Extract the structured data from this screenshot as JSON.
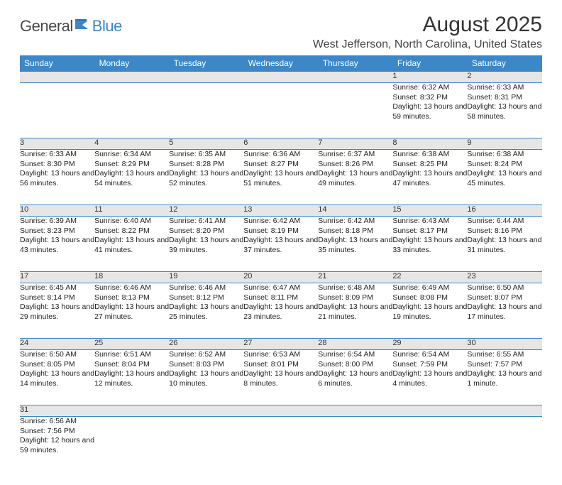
{
  "logo": {
    "part1": "General",
    "part2": "Blue"
  },
  "title": "August 2025",
  "location": "West Jefferson, North Carolina, United States",
  "weekdays": [
    "Sunday",
    "Monday",
    "Tuesday",
    "Wednesday",
    "Thursday",
    "Friday",
    "Saturday"
  ],
  "colors": {
    "header_bg": "#3b87c8",
    "header_text": "#ffffff",
    "daynum_bg": "#e6e6e6",
    "border": "#3b87c8",
    "text": "#222222",
    "logo_gray": "#4a4a4a",
    "logo_blue": "#3b87c8"
  },
  "font": {
    "body_size": 10.5,
    "daynum_size": 11,
    "header_size": 12,
    "title_size": 30,
    "location_size": 16
  },
  "weeks": [
    [
      null,
      null,
      null,
      null,
      null,
      {
        "n": "1",
        "sunrise": "6:32 AM",
        "sunset": "8:32 PM",
        "daylight": "13 hours and 59 minutes."
      },
      {
        "n": "2",
        "sunrise": "6:33 AM",
        "sunset": "8:31 PM",
        "daylight": "13 hours and 58 minutes."
      }
    ],
    [
      {
        "n": "3",
        "sunrise": "6:33 AM",
        "sunset": "8:30 PM",
        "daylight": "13 hours and 56 minutes."
      },
      {
        "n": "4",
        "sunrise": "6:34 AM",
        "sunset": "8:29 PM",
        "daylight": "13 hours and 54 minutes."
      },
      {
        "n": "5",
        "sunrise": "6:35 AM",
        "sunset": "8:28 PM",
        "daylight": "13 hours and 52 minutes."
      },
      {
        "n": "6",
        "sunrise": "6:36 AM",
        "sunset": "8:27 PM",
        "daylight": "13 hours and 51 minutes."
      },
      {
        "n": "7",
        "sunrise": "6:37 AM",
        "sunset": "8:26 PM",
        "daylight": "13 hours and 49 minutes."
      },
      {
        "n": "8",
        "sunrise": "6:38 AM",
        "sunset": "8:25 PM",
        "daylight": "13 hours and 47 minutes."
      },
      {
        "n": "9",
        "sunrise": "6:38 AM",
        "sunset": "8:24 PM",
        "daylight": "13 hours and 45 minutes."
      }
    ],
    [
      {
        "n": "10",
        "sunrise": "6:39 AM",
        "sunset": "8:23 PM",
        "daylight": "13 hours and 43 minutes."
      },
      {
        "n": "11",
        "sunrise": "6:40 AM",
        "sunset": "8:22 PM",
        "daylight": "13 hours and 41 minutes."
      },
      {
        "n": "12",
        "sunrise": "6:41 AM",
        "sunset": "8:20 PM",
        "daylight": "13 hours and 39 minutes."
      },
      {
        "n": "13",
        "sunrise": "6:42 AM",
        "sunset": "8:19 PM",
        "daylight": "13 hours and 37 minutes."
      },
      {
        "n": "14",
        "sunrise": "6:42 AM",
        "sunset": "8:18 PM",
        "daylight": "13 hours and 35 minutes."
      },
      {
        "n": "15",
        "sunrise": "6:43 AM",
        "sunset": "8:17 PM",
        "daylight": "13 hours and 33 minutes."
      },
      {
        "n": "16",
        "sunrise": "6:44 AM",
        "sunset": "8:16 PM",
        "daylight": "13 hours and 31 minutes."
      }
    ],
    [
      {
        "n": "17",
        "sunrise": "6:45 AM",
        "sunset": "8:14 PM",
        "daylight": "13 hours and 29 minutes."
      },
      {
        "n": "18",
        "sunrise": "6:46 AM",
        "sunset": "8:13 PM",
        "daylight": "13 hours and 27 minutes."
      },
      {
        "n": "19",
        "sunrise": "6:46 AM",
        "sunset": "8:12 PM",
        "daylight": "13 hours and 25 minutes."
      },
      {
        "n": "20",
        "sunrise": "6:47 AM",
        "sunset": "8:11 PM",
        "daylight": "13 hours and 23 minutes."
      },
      {
        "n": "21",
        "sunrise": "6:48 AM",
        "sunset": "8:09 PM",
        "daylight": "13 hours and 21 minutes."
      },
      {
        "n": "22",
        "sunrise": "6:49 AM",
        "sunset": "8:08 PM",
        "daylight": "13 hours and 19 minutes."
      },
      {
        "n": "23",
        "sunrise": "6:50 AM",
        "sunset": "8:07 PM",
        "daylight": "13 hours and 17 minutes."
      }
    ],
    [
      {
        "n": "24",
        "sunrise": "6:50 AM",
        "sunset": "8:05 PM",
        "daylight": "13 hours and 14 minutes."
      },
      {
        "n": "25",
        "sunrise": "6:51 AM",
        "sunset": "8:04 PM",
        "daylight": "13 hours and 12 minutes."
      },
      {
        "n": "26",
        "sunrise": "6:52 AM",
        "sunset": "8:03 PM",
        "daylight": "13 hours and 10 minutes."
      },
      {
        "n": "27",
        "sunrise": "6:53 AM",
        "sunset": "8:01 PM",
        "daylight": "13 hours and 8 minutes."
      },
      {
        "n": "28",
        "sunrise": "6:54 AM",
        "sunset": "8:00 PM",
        "daylight": "13 hours and 6 minutes."
      },
      {
        "n": "29",
        "sunrise": "6:54 AM",
        "sunset": "7:59 PM",
        "daylight": "13 hours and 4 minutes."
      },
      {
        "n": "30",
        "sunrise": "6:55 AM",
        "sunset": "7:57 PM",
        "daylight": "13 hours and 1 minute."
      }
    ],
    [
      {
        "n": "31",
        "sunrise": "6:56 AM",
        "sunset": "7:56 PM",
        "daylight": "12 hours and 59 minutes."
      },
      null,
      null,
      null,
      null,
      null,
      null
    ]
  ]
}
